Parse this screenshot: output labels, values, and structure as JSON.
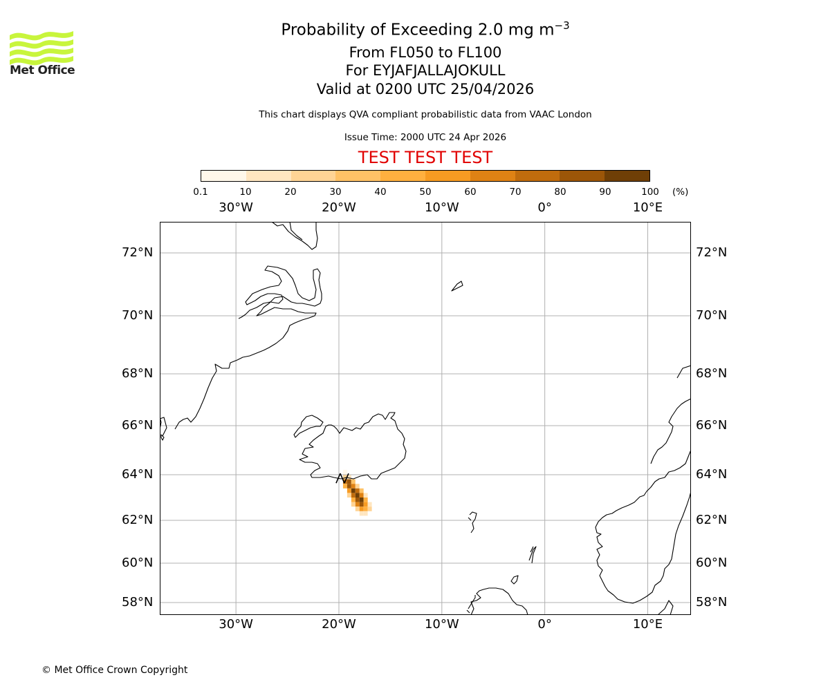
{
  "header": {
    "title_main": "Probability of Exceeding 2.0 mg m",
    "title_exponent": "−3",
    "line_levels": "From FL050 to FL100",
    "line_volcano": "For EYJAFJALLAJOKULL",
    "line_valid": "Valid at 0200 UTC 25/04/2026",
    "subtitle": "This chart displays QVA compliant probabilistic data from VAAC London",
    "issue_time": "Issue Time: 2000 UTC 24 Apr 2026",
    "test_banner": "TEST TEST TEST"
  },
  "logo": {
    "text": "Met Office",
    "color": "#c8f53c"
  },
  "colorbar": {
    "ticks": [
      "0.1",
      "10",
      "20",
      "30",
      "40",
      "50",
      "60",
      "70",
      "80",
      "90",
      "100"
    ],
    "unit": "(%)",
    "colors": [
      "#fff8ea",
      "#ffe6c0",
      "#ffd495",
      "#ffc266",
      "#ffb03f",
      "#f79b22",
      "#df8214",
      "#c06c0d",
      "#9c5608",
      "#6f3f06"
    ]
  },
  "map": {
    "lon_labels": [
      "30°W",
      "20°W",
      "10°W",
      "0°",
      "10°E"
    ],
    "lat_labels": [
      "72°N",
      "70°N",
      "68°N",
      "66°N",
      "64°N",
      "62°N",
      "60°N",
      "58°N"
    ],
    "extent": {
      "lon_min": -37.4,
      "lon_max": 14.2,
      "lat_min": 57.5,
      "lat_max": 73.0
    },
    "gridline_color": "#b0b0b0",
    "plume_cells": [
      {
        "lon": -19.4,
        "lat": 64.1,
        "p": 8
      },
      {
        "lon": -19.4,
        "lat": 63.9,
        "p": 25
      },
      {
        "lon": -19.0,
        "lat": 63.9,
        "p": 15
      },
      {
        "lon": -19.4,
        "lat": 63.7,
        "p": 70
      },
      {
        "lon": -19.0,
        "lat": 63.7,
        "p": 85
      },
      {
        "lon": -18.6,
        "lat": 63.7,
        "p": 30
      },
      {
        "lon": -19.4,
        "lat": 63.5,
        "p": 40
      },
      {
        "lon": -19.0,
        "lat": 63.5,
        "p": 80
      },
      {
        "lon": -18.6,
        "lat": 63.5,
        "p": 65
      },
      {
        "lon": -18.2,
        "lat": 63.5,
        "p": 20
      },
      {
        "lon": -19.0,
        "lat": 63.3,
        "p": 55
      },
      {
        "lon": -18.6,
        "lat": 63.3,
        "p": 90
      },
      {
        "lon": -18.2,
        "lat": 63.3,
        "p": 75
      },
      {
        "lon": -17.8,
        "lat": 63.3,
        "p": 30
      },
      {
        "lon": -19.0,
        "lat": 63.1,
        "p": 25
      },
      {
        "lon": -18.6,
        "lat": 63.1,
        "p": 70
      },
      {
        "lon": -18.2,
        "lat": 63.1,
        "p": 95
      },
      {
        "lon": -17.8,
        "lat": 63.1,
        "p": 60
      },
      {
        "lon": -17.4,
        "lat": 63.1,
        "p": 15
      },
      {
        "lon": -18.6,
        "lat": 62.9,
        "p": 45
      },
      {
        "lon": -18.2,
        "lat": 62.9,
        "p": 85
      },
      {
        "lon": -17.8,
        "lat": 62.9,
        "p": 90
      },
      {
        "lon": -17.4,
        "lat": 62.9,
        "p": 40
      },
      {
        "lon": -18.6,
        "lat": 62.7,
        "p": 20
      },
      {
        "lon": -18.2,
        "lat": 62.7,
        "p": 60
      },
      {
        "lon": -17.8,
        "lat": 62.7,
        "p": 80
      },
      {
        "lon": -17.4,
        "lat": 62.7,
        "p": 55
      },
      {
        "lon": -17.0,
        "lat": 62.7,
        "p": 15
      },
      {
        "lon": -18.2,
        "lat": 62.5,
        "p": 25
      },
      {
        "lon": -17.8,
        "lat": 62.5,
        "p": 50
      },
      {
        "lon": -17.4,
        "lat": 62.5,
        "p": 45
      },
      {
        "lon": -17.0,
        "lat": 62.5,
        "p": 20
      },
      {
        "lon": -17.8,
        "lat": 62.3,
        "p": 10
      },
      {
        "lon": -17.4,
        "lat": 62.3,
        "p": 12
      }
    ],
    "volcano": {
      "lon": -19.6,
      "lat": 63.63
    }
  },
  "footer": {
    "copyright": "© Met Office Crown Copyright"
  }
}
